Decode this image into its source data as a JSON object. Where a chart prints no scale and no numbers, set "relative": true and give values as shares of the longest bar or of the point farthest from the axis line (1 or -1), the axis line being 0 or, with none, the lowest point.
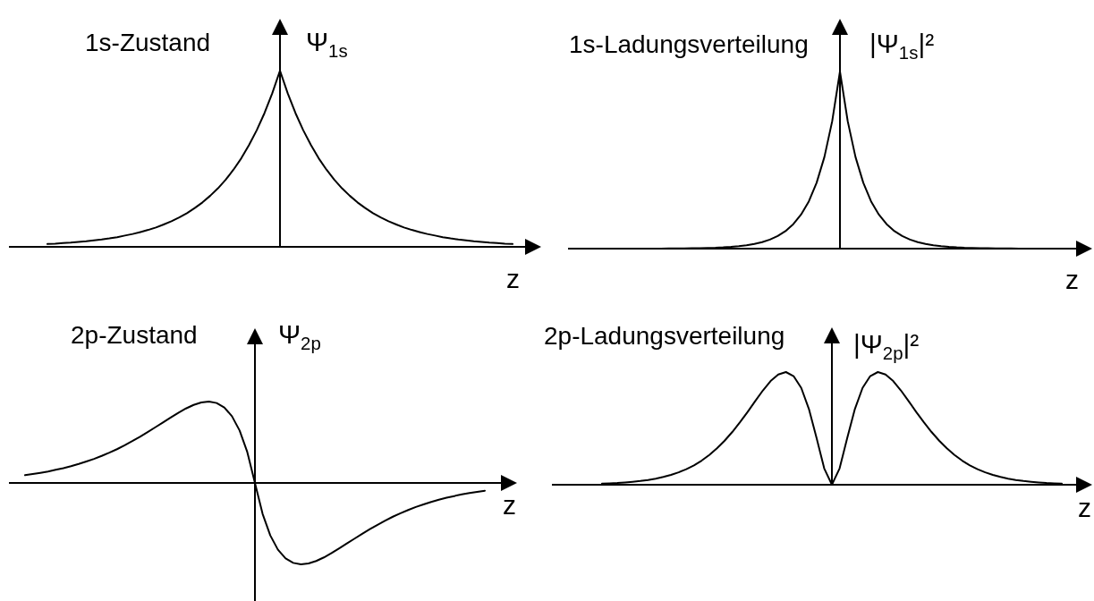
{
  "chart_data": [
    {
      "type": "line",
      "title": "1s-Zustand",
      "ylabel": "Ψ$_{1s}$",
      "xlabel": "z",
      "relative": true,
      "color": "#000000",
      "categories": [
        null,
        null,
        null,
        null,
        null,
        null,
        null,
        null,
        null,
        null,
        null,
        null,
        null,
        null,
        null,
        null,
        null,
        null,
        null,
        null,
        null,
        null,
        null,
        null,
        null,
        null,
        null,
        null,
        null,
        null,
        null,
        null,
        null,
        null,
        null,
        null,
        null,
        null,
        null,
        null,
        null,
        null,
        null,
        null,
        null,
        null,
        null,
        null,
        null,
        null,
        null,
        null,
        null,
        null,
        null,
        null,
        null,
        null,
        null,
        null,
        null
      ],
      "values": [
        0.016,
        0.018,
        0.021,
        0.024,
        0.028,
        0.032,
        0.037,
        0.042,
        0.048,
        0.055,
        0.064,
        0.073,
        0.084,
        0.096,
        0.11,
        0.127,
        0.145,
        0.167,
        0.191,
        0.22,
        0.252,
        0.29,
        0.332,
        0.381,
        0.438,
        0.502,
        0.577,
        0.662,
        0.759,
        0.871,
        1,
        0.871,
        0.759,
        0.662,
        0.577,
        0.502,
        0.438,
        0.381,
        0.332,
        0.29,
        0.252,
        0.22,
        0.191,
        0.167,
        0.145,
        0.127,
        0.11,
        0.096,
        0.084,
        0.073,
        0.064,
        0.055,
        0.048,
        0.042,
        0.037,
        0.032,
        0.028,
        0.024,
        0.021,
        0.018,
        0.016
      ]
    },
    {
      "type": "line",
      "title": "1s-Ladungsverteilung",
      "ylabel": "|Ψ$_{1s}$|²",
      "xlabel": "z",
      "relative": true,
      "color": "#000000",
      "categories": [
        null,
        null,
        null,
        null,
        null,
        null,
        null,
        null,
        null,
        null,
        null,
        null,
        null,
        null,
        null,
        null,
        null,
        null,
        null,
        null,
        null,
        null,
        null,
        null,
        null,
        null,
        null,
        null,
        null,
        null,
        null,
        null,
        null,
        null,
        null,
        null,
        null,
        null,
        null,
        null,
        null,
        null,
        null,
        null,
        null,
        null,
        null,
        null,
        null,
        null,
        null,
        null,
        null,
        null,
        null,
        null,
        null,
        null,
        null,
        null,
        null
      ],
      "values": [
        0,
        0,
        0,
        0,
        0,
        0,
        0,
        0,
        0.001,
        0.001,
        0.001,
        0.002,
        0.003,
        0.004,
        0.005,
        0.007,
        0.01,
        0.014,
        0.019,
        0.027,
        0.037,
        0.051,
        0.071,
        0.099,
        0.138,
        0.192,
        0.267,
        0.372,
        0.517,
        0.719,
        1,
        0.719,
        0.517,
        0.372,
        0.267,
        0.192,
        0.138,
        0.099,
        0.071,
        0.051,
        0.037,
        0.027,
        0.019,
        0.014,
        0.01,
        0.007,
        0.005,
        0.004,
        0.003,
        0.002,
        0.001,
        0.001,
        0.001,
        0,
        0,
        0,
        0,
        0,
        0,
        0,
        0
      ]
    },
    {
      "type": "line",
      "title": "2p-Zustand",
      "ylabel": "Ψ$_{2p}$",
      "xlabel": "z",
      "relative": true,
      "color": "#000000",
      "categories": [
        null,
        null,
        null,
        null,
        null,
        null,
        null,
        null,
        null,
        null,
        null,
        null,
        null,
        null,
        null,
        null,
        null,
        null,
        null,
        null,
        null,
        null,
        null,
        null,
        null,
        null,
        null,
        null,
        null,
        null,
        null,
        null,
        null,
        null,
        null,
        null,
        null,
        null,
        null,
        null,
        null,
        null,
        null,
        null,
        null,
        null,
        null,
        null,
        null,
        null,
        null,
        null,
        null,
        null,
        null,
        null,
        null,
        null,
        null,
        null,
        null
      ],
      "values": [
        0.096,
        0.109,
        0.124,
        0.141,
        0.161,
        0.182,
        0.206,
        0.233,
        0.263,
        0.295,
        0.332,
        0.372,
        0.415,
        0.463,
        0.514,
        0.568,
        0.625,
        0.684,
        0.744,
        0.804,
        0.862,
        0.915,
        0.959,
        0.989,
        1,
        0.982,
        0.927,
        0.82,
        0.644,
        0.38,
        0,
        -0.38,
        -0.644,
        -0.82,
        -0.927,
        -0.982,
        -1,
        -0.989,
        -0.959,
        -0.915,
        -0.862,
        -0.804,
        -0.744,
        -0.684,
        -0.625,
        -0.568,
        -0.514,
        -0.463,
        -0.415,
        -0.372,
        -0.332,
        -0.295,
        -0.263,
        -0.233,
        -0.206,
        -0.182,
        -0.161,
        -0.141,
        -0.124,
        -0.109,
        -0.096
      ]
    },
    {
      "type": "line",
      "title": "2p-Ladungsverteilung",
      "ylabel": "|Ψ$_{2p}$|²",
      "xlabel": "z",
      "relative": true,
      "color": "#000000",
      "categories": [
        null,
        null,
        null,
        null,
        null,
        null,
        null,
        null,
        null,
        null,
        null,
        null,
        null,
        null,
        null,
        null,
        null,
        null,
        null,
        null,
        null,
        null,
        null,
        null,
        null,
        null,
        null,
        null,
        null,
        null,
        null,
        null,
        null,
        null,
        null,
        null,
        null,
        null,
        null,
        null,
        null,
        null,
        null,
        null,
        null,
        null,
        null,
        null,
        null,
        null,
        null,
        null,
        null,
        null,
        null,
        null,
        null,
        null,
        null,
        null,
        null
      ],
      "values": [
        0.009,
        0.012,
        0.015,
        0.02,
        0.026,
        0.033,
        0.042,
        0.054,
        0.069,
        0.087,
        0.11,
        0.138,
        0.172,
        0.214,
        0.264,
        0.323,
        0.391,
        0.468,
        0.554,
        0.646,
        0.743,
        0.837,
        0.92,
        0.978,
        1,
        0.964,
        0.859,
        0.672,
        0.415,
        0.144,
        0,
        0.144,
        0.415,
        0.672,
        0.859,
        0.964,
        1,
        0.978,
        0.92,
        0.837,
        0.743,
        0.646,
        0.554,
        0.468,
        0.391,
        0.323,
        0.264,
        0.214,
        0.172,
        0.138,
        0.11,
        0.087,
        0.069,
        0.054,
        0.042,
        0.033,
        0.026,
        0.02,
        0.015,
        0.012,
        0.009
      ]
    }
  ]
}
